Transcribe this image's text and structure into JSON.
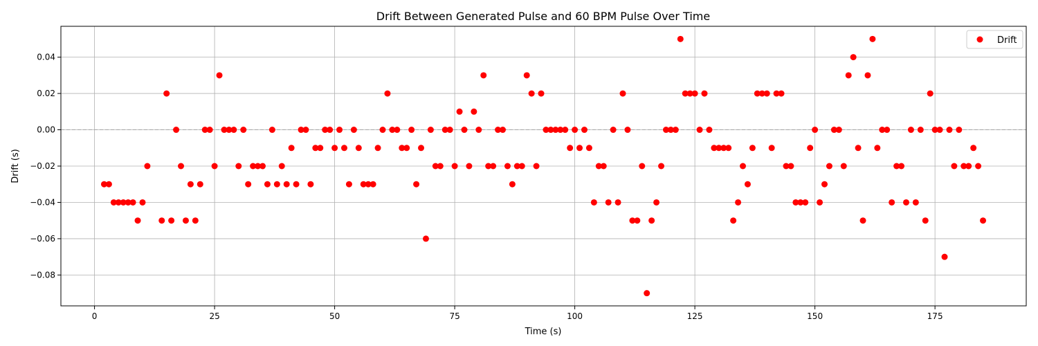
{
  "chart_data": {
    "type": "scatter",
    "title": "Drift Between Generated Pulse and 60 BPM Pulse Over Time",
    "xlabel": "Time (s)",
    "ylabel": "Drift (s)",
    "xlim": [
      -7,
      194
    ],
    "ylim": [
      -0.097,
      0.057
    ],
    "xticks": [
      0,
      25,
      50,
      75,
      100,
      125,
      150,
      175
    ],
    "xtick_labels": [
      "0",
      "25",
      "50",
      "75",
      "100",
      "125",
      "150",
      "175"
    ],
    "yticks": [
      -0.08,
      -0.06,
      -0.04,
      -0.02,
      0.0,
      0.02,
      0.04
    ],
    "ytick_labels": [
      "−0.08",
      "−0.06",
      "−0.04",
      "−0.02",
      "0.00",
      "0.02",
      "0.04"
    ],
    "grid": true,
    "zero_line": true,
    "legend_position": "upper-right",
    "series": [
      {
        "name": "Drift",
        "color": "#ff0000",
        "marker": "circle",
        "x": [
          2,
          3,
          4,
          5,
          6,
          7,
          8,
          9,
          10,
          11,
          14,
          15,
          16,
          17,
          18,
          19,
          20,
          21,
          22,
          23,
          24,
          25,
          26,
          27,
          28,
          29,
          30,
          31,
          32,
          33,
          34,
          35,
          36,
          37,
          38,
          39,
          40,
          41,
          42,
          43,
          44,
          45,
          46,
          47,
          48,
          49,
          50,
          51,
          52,
          53,
          54,
          55,
          56,
          57,
          58,
          59,
          60,
          61,
          62,
          63,
          64,
          65,
          66,
          67,
          68,
          69,
          70,
          71,
          72,
          73,
          74,
          75,
          76,
          77,
          78,
          79,
          80,
          81,
          82,
          83,
          84,
          85,
          86,
          87,
          88,
          89,
          90,
          91,
          92,
          93,
          94,
          95,
          96,
          97,
          98,
          99,
          100,
          101,
          102,
          103,
          104,
          105,
          106,
          107,
          108,
          109,
          110,
          111,
          112,
          113,
          114,
          115,
          116,
          117,
          118,
          119,
          120,
          121,
          122,
          123,
          124,
          125,
          126,
          127,
          128,
          129,
          130,
          131,
          132,
          133,
          134,
          135,
          136,
          137,
          138,
          139,
          140,
          141,
          142,
          143,
          144,
          145,
          146,
          147,
          148,
          149,
          150,
          151,
          152,
          153,
          154,
          155,
          156,
          157,
          158,
          159,
          160,
          161,
          162,
          163,
          164,
          165,
          166,
          167,
          168,
          169,
          170,
          171,
          172,
          173,
          174,
          175,
          176,
          177,
          178,
          179,
          180,
          181,
          182,
          183,
          184,
          185
        ],
        "y": [
          -0.03,
          -0.03,
          -0.04,
          -0.04,
          -0.04,
          -0.04,
          -0.04,
          -0.05,
          -0.04,
          -0.02,
          -0.05,
          0.02,
          -0.05,
          0,
          -0.02,
          -0.05,
          -0.03,
          -0.05,
          -0.03,
          0,
          0,
          -0.02,
          0.03,
          0,
          0,
          0,
          -0.02,
          0,
          -0.03,
          -0.02,
          -0.02,
          -0.02,
          -0.03,
          0,
          -0.03,
          -0.02,
          -0.03,
          -0.01,
          -0.03,
          0,
          0,
          -0.03,
          -0.01,
          -0.01,
          0,
          0,
          -0.01,
          0,
          -0.01,
          -0.03,
          0,
          -0.01,
          -0.03,
          -0.03,
          -0.03,
          -0.01,
          0,
          0.02,
          0,
          0,
          -0.01,
          -0.01,
          0,
          -0.03,
          -0.01,
          -0.06,
          0,
          -0.02,
          -0.02,
          0,
          0,
          -0.02,
          0.01,
          0,
          -0.02,
          0.01,
          0,
          0.03,
          -0.02,
          -0.02,
          0,
          0,
          -0.02,
          -0.03,
          -0.02,
          -0.02,
          0.03,
          0.02,
          -0.02,
          0.02,
          0,
          0,
          0,
          0,
          0,
          -0.01,
          0,
          -0.01,
          0,
          -0.01,
          -0.04,
          -0.02,
          -0.02,
          -0.04,
          0,
          -0.04,
          0.02,
          0,
          -0.05,
          -0.05,
          -0.02,
          -0.09,
          -0.05,
          -0.04,
          -0.02,
          0,
          0,
          0,
          0.05,
          0.02,
          0.02,
          0.02,
          0,
          0.02,
          0,
          -0.01,
          -0.01,
          -0.01,
          -0.01,
          -0.05,
          -0.04,
          -0.02,
          -0.03,
          -0.01,
          0.02,
          0.02,
          0.02,
          -0.01,
          0.02,
          0.02,
          -0.02,
          -0.02,
          -0.04,
          -0.04,
          -0.04,
          -0.01,
          0,
          -0.04,
          -0.03,
          -0.02,
          0,
          0,
          -0.02,
          0.03,
          0.04,
          -0.01,
          -0.05,
          0.03,
          0.05,
          -0.01,
          0,
          0,
          -0.04,
          -0.02,
          -0.02,
          -0.04,
          0,
          -0.04,
          0,
          -0.05,
          0.02,
          0,
          0,
          -0.07,
          0,
          -0.02,
          0,
          -0.02,
          -0.02,
          -0.01,
          -0.02,
          -0.05
        ]
      }
    ]
  }
}
